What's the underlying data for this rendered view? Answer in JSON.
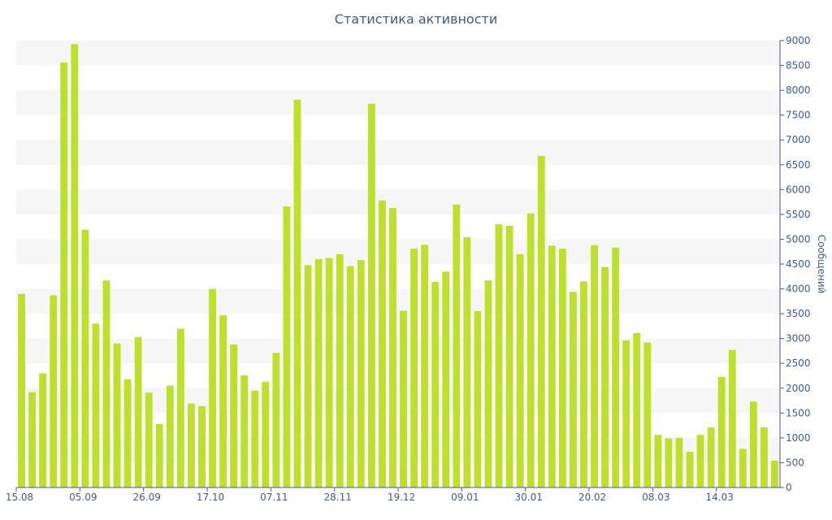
{
  "chart_data": {
    "type": "bar",
    "title": "Статистика активности",
    "ylabel": "Сообщений",
    "xlabel": "",
    "ylim": [
      0,
      9000
    ],
    "y_ticks": [
      0,
      500,
      1000,
      1500,
      2000,
      2500,
      3000,
      3500,
      4000,
      4500,
      5000,
      5500,
      6000,
      6500,
      7000,
      7500,
      8000,
      8500,
      9000
    ],
    "y_axis_side": "right",
    "grid": "alternating horizontal bands",
    "x_tick_labels": [
      {
        "index": 0,
        "label": "15.08"
      },
      {
        "index": 6,
        "label": "05.09"
      },
      {
        "index": 12,
        "label": "26.09"
      },
      {
        "index": 18,
        "label": "17.10"
      },
      {
        "index": 24,
        "label": "07.11"
      },
      {
        "index": 30,
        "label": "28.11"
      },
      {
        "index": 36,
        "label": "19.12"
      },
      {
        "index": 42,
        "label": "09.01"
      },
      {
        "index": 48,
        "label": "30.01"
      },
      {
        "index": 54,
        "label": "20.02"
      },
      {
        "index": 60,
        "label": "08.03"
      },
      {
        "index": 66,
        "label": "14.03"
      }
    ],
    "values": [
      3900,
      1920,
      2300,
      3870,
      8560,
      8930,
      5190,
      3300,
      4170,
      2900,
      2180,
      3030,
      1910,
      1280,
      2050,
      3200,
      1690,
      1640,
      4000,
      3470,
      2880,
      2260,
      1950,
      2130,
      2710,
      5660,
      7810,
      4480,
      4600,
      4620,
      4700,
      4460,
      4580,
      7730,
      5780,
      5630,
      3560,
      4810,
      4890,
      4140,
      4350,
      5700,
      5040,
      3550,
      4170,
      5300,
      5270,
      4700,
      5520,
      6680,
      4870,
      4810,
      3940,
      4150,
      4880,
      4440,
      4830,
      2960,
      3110,
      2920,
      1060,
      990,
      1000,
      720,
      1060,
      1210,
      2230,
      2770,
      780,
      1730,
      1210,
      540
    ],
    "colors": {
      "bar": "#bde02c",
      "text": "#3e5a94",
      "band": "#f6f6f6",
      "axis": "#3e5a94"
    }
  }
}
